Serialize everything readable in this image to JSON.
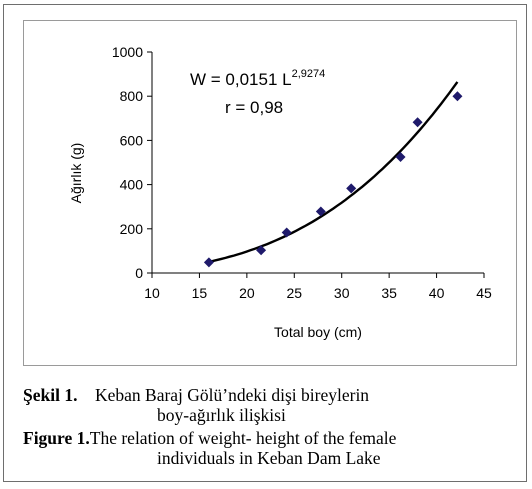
{
  "chart_data": {
    "type": "scatter",
    "x": [
      16,
      21.5,
      24.2,
      27.8,
      31,
      36.2,
      38,
      42.2
    ],
    "y": [
      48,
      103,
      183,
      278,
      383,
      525,
      682,
      800
    ],
    "trendline": {
      "type": "power",
      "coefficient": 0.0151,
      "exponent": 2.9274
    },
    "xlabel": "Total boy (cm)",
    "ylabel": "Ağırlık (g)",
    "xlim": [
      10,
      45
    ],
    "ylim": [
      0,
      1000
    ],
    "x_ticks": [
      "10",
      "15",
      "20",
      "25",
      "30",
      "35",
      "40",
      "45"
    ],
    "y_ticks": [
      "0",
      "200",
      "400",
      "600",
      "800",
      "1000"
    ],
    "equation": {
      "prefix": "W = 0,0151 L",
      "exponent": "2,9274"
    },
    "r_label": "r = 0,98",
    "grid": false,
    "marker_color": "#1f1a6b",
    "line_color": "#000000"
  },
  "caption": {
    "tr_label": "Şekil 1.",
    "tr_text_line1": "Keban Baraj Gölü’ndeki dişi bireylerin",
    "tr_text_line2": "boy-ağırlık ilişkisi",
    "en_label": "Figure 1.",
    "en_text_line1": "The relation of weight- height of the female",
    "en_text_line2": "individuals in Keban Dam Lake"
  }
}
